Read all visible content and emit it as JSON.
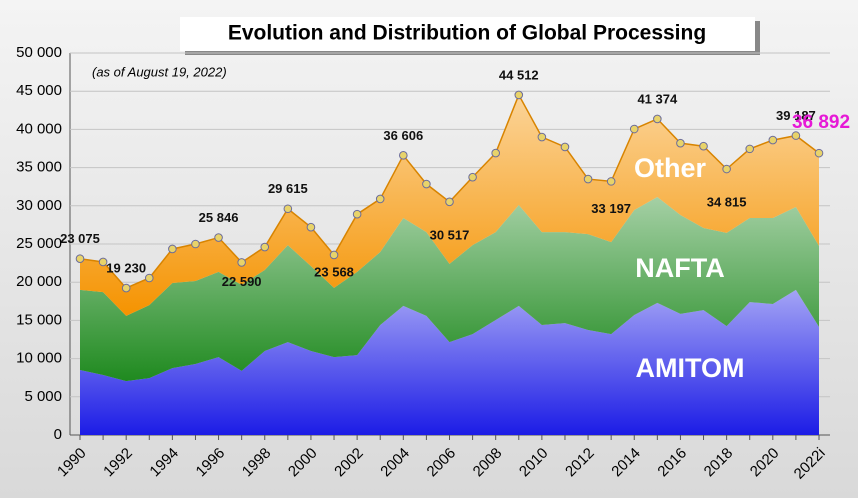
{
  "chart_data": {
    "type": "stacked-area",
    "title": "Evolution and Distribution of Global Processing",
    "subtitle": "(as of August 19, 2022)",
    "categories": [
      "1990",
      null,
      "1992",
      null,
      "1994",
      null,
      "1996",
      null,
      "1998",
      null,
      "2000",
      null,
      "2002",
      null,
      "2004",
      null,
      "2006",
      null,
      "2008",
      null,
      "2010",
      null,
      "2012",
      null,
      "2014",
      null,
      "2016",
      null,
      "2018",
      null,
      "2020",
      null,
      "2022i"
    ],
    "series": [
      {
        "name": "AMITOM",
        "color": "#1c1ce6",
        "values": [
          8500,
          7850,
          7050,
          7450,
          8750,
          9300,
          10200,
          8400,
          11000,
          12150,
          11000,
          10200,
          10450,
          14400,
          16900,
          15600,
          12150,
          13200,
          15050,
          16900,
          14400,
          14650,
          13750,
          13200,
          15700,
          17300,
          15850,
          16350,
          14250,
          17400,
          17150,
          19000,
          14150
        ]
      },
      {
        "name": "NAFTA",
        "color": "#1f8a1f",
        "values": [
          10500,
          10850,
          8550,
          9550,
          11150,
          10850,
          11150,
          11250,
          10600,
          12700,
          11100,
          9050,
          10900,
          9550,
          11500,
          10950,
          10250,
          11650,
          11500,
          13200,
          12150,
          11900,
          12550,
          12050,
          13750,
          13850,
          12950,
          10750,
          12200,
          11000,
          11250,
          10850,
          10600
        ]
      },
      {
        "name": "Other",
        "color": "#f59300",
        "values": [
          4075,
          3950,
          3630,
          3550,
          4450,
          4850,
          4496,
          2940,
          3000,
          4765,
          5100,
          4318,
          7550,
          6950,
          8206,
          6300,
          8117,
          8900,
          10350,
          14412,
          12450,
          11150,
          7200,
          7947,
          10600,
          10224,
          9400,
          10700,
          8365,
          9050,
          10200,
          9337,
          12142
        ]
      }
    ],
    "totals": {
      "values": [
        23075,
        null,
        19230,
        null,
        null,
        null,
        25846,
        22590,
        null,
        29615,
        null,
        23568,
        null,
        null,
        36606,
        null,
        30517,
        null,
        null,
        44512,
        null,
        null,
        null,
        33197,
        null,
        41374,
        null,
        null,
        34815,
        null,
        null,
        39187,
        36892
      ],
      "value_labels": [
        "23 075",
        null,
        "19 230",
        null,
        null,
        null,
        "25 846",
        "22 590",
        null,
        "29 615",
        null,
        "23 568",
        null,
        null,
        "36 606",
        null,
        "30 517",
        null,
        null,
        "44 512",
        null,
        null,
        null,
        "33 197",
        null,
        "41 374",
        null,
        null,
        "34 815",
        null,
        null,
        "39 187",
        "36 892"
      ],
      "highlight_color": "#e619d6"
    },
    "ylim": [
      0,
      50000
    ],
    "yticks": [
      0,
      {
        "value": 5000,
        "label": "5 000"
      },
      {
        "value": 10000,
        "label": "10 000"
      },
      {
        "value": 15000,
        "label": "15 000"
      },
      {
        "value": 20000,
        "label": "20 000"
      },
      {
        "value": 25000,
        "label": "25 000"
      },
      {
        "value": 30000,
        "label": "30 000"
      },
      {
        "value": 35000,
        "label": "35 000"
      },
      {
        "value": 40000,
        "label": "40 000"
      },
      {
        "value": 45000,
        "label": "45 000"
      },
      {
        "value": 50000,
        "label": "50 000"
      }
    ],
    "grid": true
  }
}
